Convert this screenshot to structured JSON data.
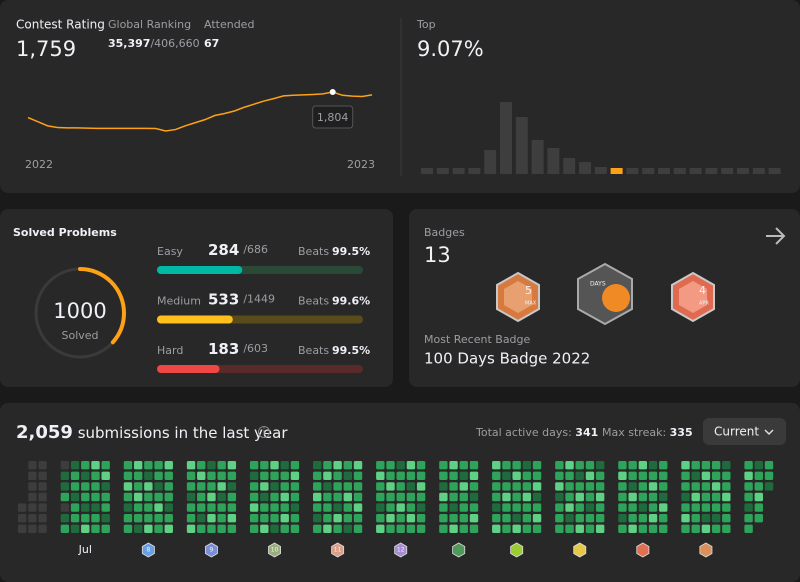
{
  "contest": {
    "rating_label": "Contest Rating",
    "rating": {
      "value": 1759,
      "label": "1,759"
    },
    "ranking_label": "Global Ranking",
    "ranking": {
      "value": 35397,
      "label": "35,397"
    },
    "ranking_total": {
      "value": 406660,
      "label": "/406,660"
    },
    "attended_label": "Attended",
    "attended": 67,
    "chart": {
      "type": "line",
      "color": "#ffa116",
      "x_labels": [
        "2022",
        "2023"
      ],
      "values": [
        1680,
        1660,
        1640,
        1632,
        1630,
        1630,
        1629,
        1628,
        1628,
        1628,
        1628,
        1628,
        1628,
        1627,
        1615,
        1622,
        1640,
        1655,
        1670,
        1690,
        1700,
        1712,
        1730,
        1745,
        1760,
        1772,
        1785,
        1788,
        1790,
        1792,
        1795,
        1804,
        1788,
        1784,
        1782,
        1790
      ],
      "tooltip": {
        "index": 31,
        "label": "1,804"
      }
    }
  },
  "top": {
    "label": "Top",
    "value": {
      "value": 9.07,
      "label": "9.07%"
    },
    "chart": {
      "type": "bar",
      "color": "#3e3e3e",
      "highlight_color": "#ffa116",
      "highlight_index": 12,
      "values": [
        6,
        6,
        6,
        6,
        24,
        72,
        57,
        34,
        26,
        16,
        12,
        7,
        6,
        6,
        6,
        6,
        6,
        6,
        6,
        6,
        6,
        6,
        6
      ]
    }
  },
  "solved": {
    "title": "Solved Problems",
    "count": 1000,
    "count_label": "Solved",
    "color": "#ffa116",
    "difficulties": [
      {
        "name": "Easy",
        "solved": 284,
        "total": {
          "value": 686,
          "label": "/686"
        },
        "beats_label": "Beats",
        "beats": {
          "value": 99.5,
          "label": "99.5%"
        },
        "color": "#00b8a3",
        "track": "#2a4a37"
      },
      {
        "name": "Medium",
        "solved": 533,
        "total": {
          "value": 1449,
          "label": "/1449"
        },
        "beats_label": "Beats",
        "beats": {
          "value": 99.6,
          "label": "99.6%"
        },
        "color": "#ffc01e",
        "track": "#5a4b1d"
      },
      {
        "name": "Hard",
        "solved": 183,
        "total": {
          "value": 603,
          "label": "/603"
        },
        "beats_label": "Beats",
        "beats": {
          "value": 99.5,
          "label": "99.5%"
        },
        "color": "#ef4743",
        "track": "#5a2a2a"
      }
    ]
  },
  "badges": {
    "title": "Badges",
    "count": 13,
    "icons": [
      {
        "text": "5",
        "sub": "MAX"
      },
      {
        "text": "DAYS"
      },
      {
        "text": "4",
        "sub": "APR"
      }
    ],
    "recent_label": "Most Recent Badge",
    "recent": "100 Days Badge 2022"
  },
  "submissions": {
    "count": {
      "value": 2059,
      "label": "2,059"
    },
    "text": "submissions in the last year",
    "active_label": "Total active days:",
    "active": 341,
    "streak_label": "Max streak:",
    "streak": 335,
    "dropdown": "Current",
    "level_colors": [
      "#2a2a2a",
      "#3d3d3d",
      "#1f6b3d",
      "#2ea35a",
      "#5ed184"
    ],
    "months": [
      {
        "label": null,
        "days": [
          null,
          null,
          null,
          null,
          1,
          1,
          1,
          1,
          1,
          1,
          1,
          1,
          1,
          1,
          1,
          1,
          1,
          1,
          1,
          1,
          1
        ]
      },
      {
        "label": "Jul",
        "days": [
          1,
          2,
          2,
          3,
          1,
          2,
          3,
          2,
          3,
          3,
          2,
          3,
          3,
          2,
          3,
          2,
          3,
          3,
          2,
          3,
          4,
          4,
          3,
          3,
          3,
          2,
          3,
          3,
          3,
          4,
          2,
          3,
          3,
          2,
          3
        ]
      },
      {
        "label": "8",
        "icon": "#6a9fe0",
        "days": [
          3,
          3,
          4,
          3,
          2,
          3,
          3,
          4,
          3,
          3,
          4,
          3,
          3,
          2,
          3,
          2,
          4,
          3,
          3,
          3,
          4,
          3,
          3,
          2,
          3,
          4,
          3,
          3,
          4,
          3,
          3,
          3,
          2,
          3,
          4
        ]
      },
      {
        "label": "9",
        "icon": "#7a8fd8",
        "days": [
          4,
          3,
          3,
          2,
          3,
          3,
          4,
          3,
          4,
          3,
          3,
          3,
          2,
          3,
          2,
          3,
          3,
          4,
          3,
          4,
          3,
          3,
          3,
          4,
          2,
          3,
          3,
          3,
          4,
          3,
          2,
          3,
          3,
          4,
          3
        ]
      },
      {
        "label": "10",
        "icon": "#9aae7c",
        "days": [
          3,
          2,
          3,
          3,
          4,
          3,
          3,
          3,
          3,
          4,
          2,
          3,
          3,
          4,
          4,
          3,
          2,
          3,
          3,
          3,
          2,
          2,
          3,
          3,
          4,
          3,
          4,
          3,
          3,
          4,
          3,
          3,
          2,
          3,
          3
        ]
      },
      {
        "label": "11",
        "icon": "#d9a08a",
        "days": [
          2,
          3,
          3,
          4,
          3,
          2,
          3,
          3,
          4,
          2,
          3,
          3,
          3,
          4,
          4,
          3,
          3,
          3,
          2,
          4,
          3,
          3,
          2,
          3,
          4,
          3,
          3,
          2,
          4,
          3,
          3,
          3,
          4,
          3,
          3
        ]
      },
      {
        "label": "12",
        "icon": "#a58fd0",
        "days": [
          3,
          4,
          3,
          3,
          2,
          3,
          4,
          3,
          3,
          4,
          3,
          3,
          4,
          3,
          2,
          3,
          3,
          3,
          4,
          3,
          3,
          4,
          3,
          2,
          3,
          3,
          4,
          3,
          3,
          3,
          4,
          3,
          2,
          3,
          3
        ]
      },
      {
        "label": null,
        "icon": "#4f9a5a",
        "days": [
          3,
          3,
          2,
          4,
          3,
          3,
          3,
          4,
          3,
          3,
          3,
          2,
          3,
          4,
          3,
          2,
          4,
          3,
          3,
          3,
          3,
          3,
          4,
          3,
          2,
          3,
          4,
          3
        ]
      },
      {
        "label": null,
        "icon": "#9acd32",
        "days": [
          4,
          3,
          3,
          3,
          2,
          3,
          4,
          3,
          2,
          3,
          4,
          3,
          3,
          3,
          3,
          4,
          3,
          3,
          3,
          2,
          4,
          2,
          3,
          3,
          4,
          3,
          3,
          3,
          3,
          3,
          4,
          2,
          3,
          4,
          3
        ]
      },
      {
        "label": null,
        "icon": "#e5c84a",
        "days": [
          3,
          3,
          4,
          2,
          3,
          3,
          3,
          4,
          3,
          3,
          3,
          4,
          2,
          3,
          3,
          2,
          3,
          4,
          3,
          3,
          4,
          3,
          4,
          3,
          3,
          2,
          3,
          3,
          2,
          3,
          3,
          4,
          3,
          3,
          4
        ]
      },
      {
        "label": null,
        "icon": "#e07050",
        "days": [
          3,
          4,
          3,
          3,
          3,
          2,
          3,
          3,
          3,
          2,
          4,
          3,
          3,
          4,
          4,
          3,
          3,
          3,
          2,
          3,
          3,
          2,
          3,
          4,
          3,
          3,
          4,
          3,
          3,
          3,
          3,
          2,
          4,
          3,
          3
        ]
      },
      {
        "label": null,
        "icon": "#d9905a",
        "days": [
          4,
          3,
          3,
          2,
          3,
          4,
          3,
          3,
          2,
          3,
          4,
          3,
          3,
          3,
          3,
          4,
          3,
          3,
          3,
          2,
          4,
          3,
          3,
          4,
          3,
          3,
          2,
          3,
          2,
          3,
          3,
          4,
          3,
          3,
          3
        ]
      },
      {
        "label": null,
        "days": [
          3,
          4,
          3,
          3,
          2,
          3,
          3,
          2,
          3,
          3,
          4,
          3,
          3,
          null,
          3,
          3,
          2,
          null,
          null,
          null,
          null
        ]
      }
    ]
  }
}
